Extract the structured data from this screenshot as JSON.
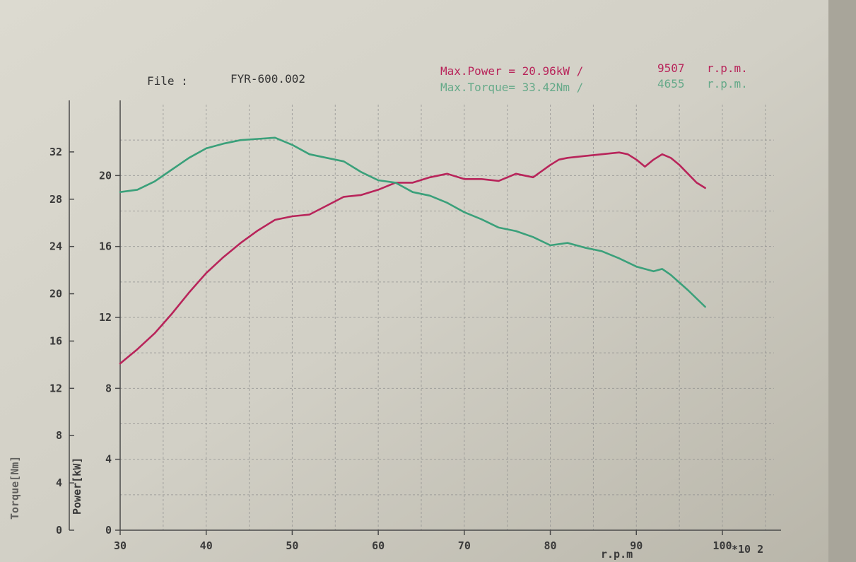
{
  "file": {
    "label": "File :",
    "name": "FYR-600.002"
  },
  "max_power": {
    "label": "Max.Power = 20.96kW /",
    "rpm": "9507",
    "unit": "r.p.m."
  },
  "max_torque": {
    "label": "Max.Torque= 33.42Nm /",
    "rpm": "4655",
    "unit": "r.p.m."
  },
  "colors": {
    "power": "#b8245a",
    "torque": "#3aa07a",
    "grid": "#8c8c8c",
    "axis": "#4a4a4a"
  },
  "chart_data": {
    "type": "line",
    "title": "",
    "xlabel": "r.p.m",
    "x_multiplier": "*10 2",
    "xlim": [
      30,
      106
    ],
    "x_ticks": [
      "30",
      "40",
      "50",
      "60",
      "70",
      "80",
      "90",
      "100"
    ],
    "torque_axis": {
      "label": "Torque[Nm]",
      "lim": [
        0,
        36
      ],
      "ticks": [
        "0",
        "4",
        "8",
        "12",
        "16",
        "20",
        "24",
        "28",
        "32"
      ]
    },
    "power_axis": {
      "label": "Power[kW]",
      "lim": [
        0,
        24
      ],
      "ticks": [
        "0",
        "4",
        "8",
        "12",
        "16",
        "20"
      ]
    },
    "grid": true,
    "series": [
      {
        "name": "Power[kW]",
        "axis": "power",
        "x": [
          30,
          32,
          34,
          36,
          38,
          40,
          42,
          44,
          46,
          48,
          50,
          52,
          54,
          56,
          58,
          60,
          62,
          64,
          66,
          68,
          70,
          72,
          74,
          76,
          78,
          80,
          81,
          82,
          84,
          86,
          88,
          89,
          90,
          91,
          92,
          93,
          94,
          95,
          96,
          97,
          98
        ],
        "values": [
          9.4,
          10.2,
          11.1,
          12.2,
          13.4,
          14.5,
          15.4,
          16.2,
          16.9,
          17.5,
          17.7,
          17.8,
          18.3,
          18.8,
          18.9,
          19.2,
          19.6,
          19.6,
          19.9,
          20.1,
          19.8,
          19.8,
          19.7,
          20.1,
          19.9,
          20.6,
          20.9,
          21.0,
          21.1,
          21.2,
          21.3,
          21.2,
          20.9,
          20.5,
          20.9,
          21.2,
          21.0,
          20.6,
          20.1,
          19.6,
          19.3
        ]
      },
      {
        "name": "Torque[Nm]",
        "axis": "torque",
        "x": [
          30,
          32,
          34,
          36,
          38,
          40,
          42,
          44,
          46,
          48,
          50,
          52,
          54,
          56,
          58,
          60,
          62,
          64,
          66,
          68,
          70,
          72,
          74,
          76,
          78,
          80,
          82,
          84,
          86,
          88,
          90,
          92,
          93,
          94,
          96,
          98
        ],
        "values": [
          28.6,
          28.8,
          29.5,
          30.5,
          31.5,
          32.3,
          32.7,
          33.0,
          33.1,
          33.2,
          32.6,
          31.8,
          31.5,
          31.2,
          30.3,
          29.6,
          29.4,
          28.6,
          28.3,
          27.7,
          26.9,
          26.3,
          25.6,
          25.3,
          24.8,
          24.1,
          24.3,
          23.9,
          23.6,
          23.0,
          22.3,
          21.9,
          22.1,
          21.6,
          20.3,
          18.9
        ]
      }
    ]
  }
}
